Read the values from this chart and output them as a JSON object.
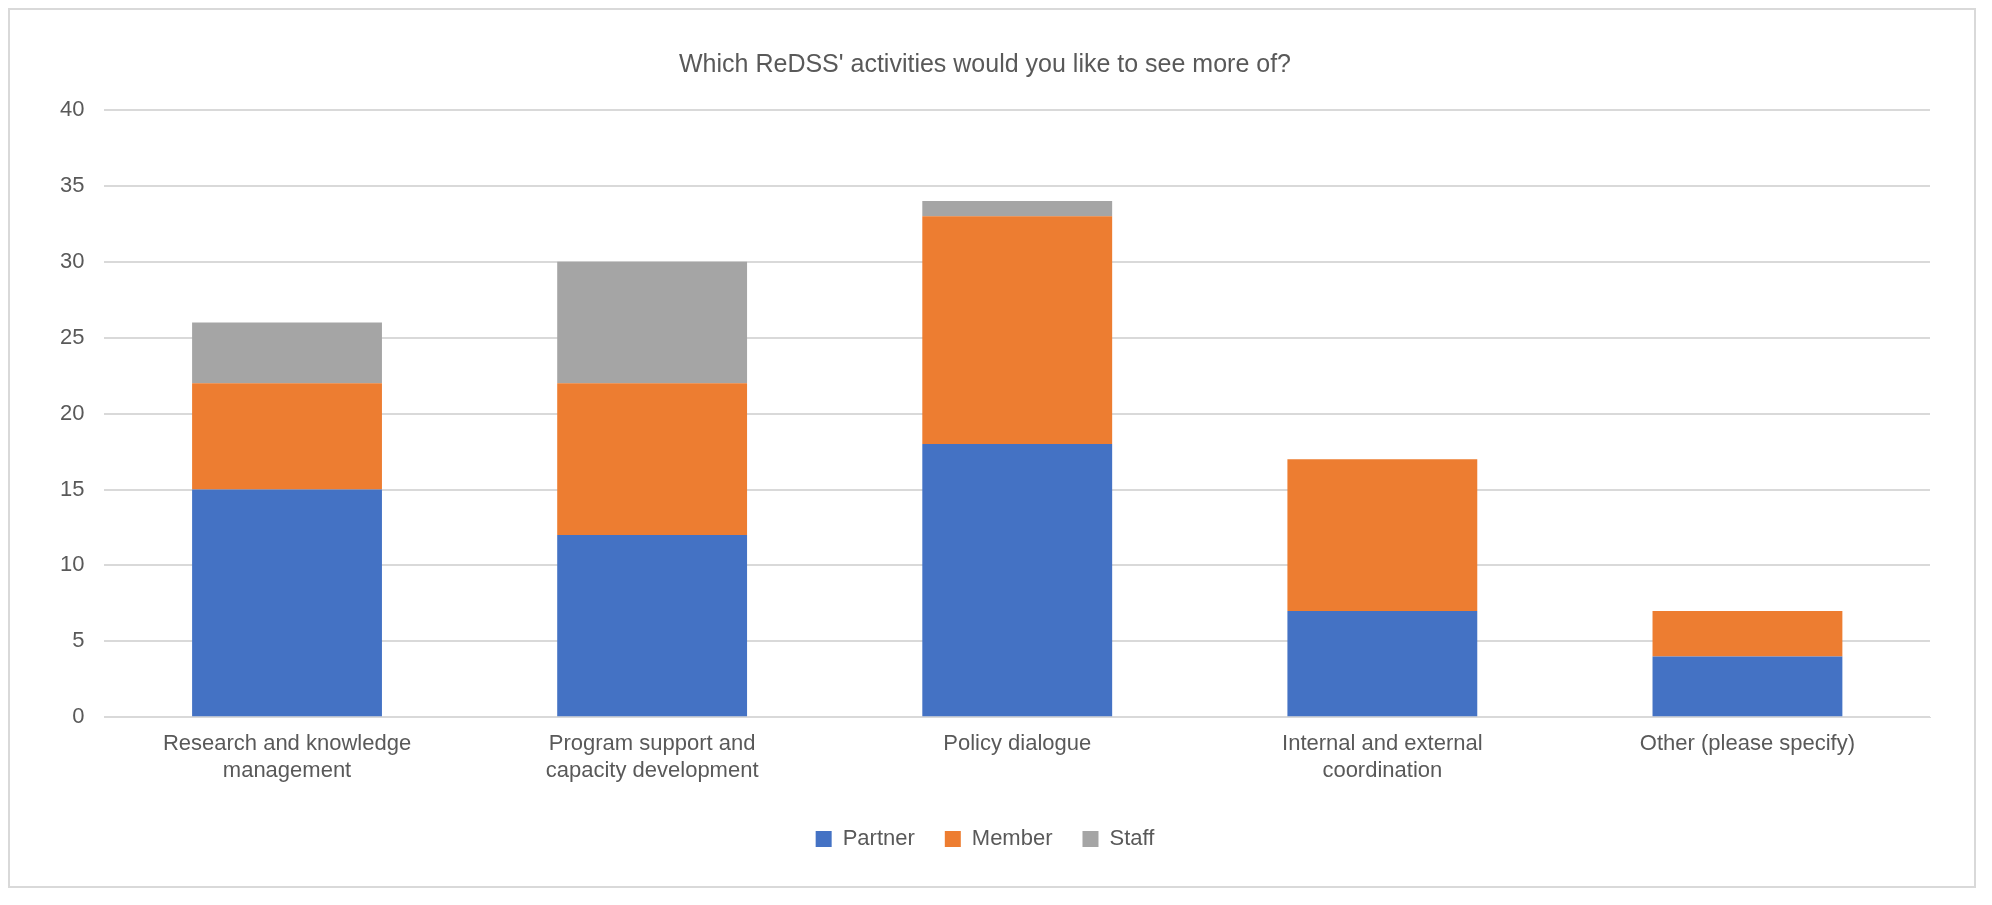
{
  "chart_data": {
    "type": "bar",
    "title": "Which ReDSS' activities would you like to see more of?",
    "categories": [
      "Research and knowledge management",
      "Program support and capacity development",
      "Policy dialogue",
      "Internal and external coordination",
      "Other (please specify)"
    ],
    "series": [
      {
        "name": "Partner",
        "color": "#4472c4",
        "values": [
          15,
          12,
          18,
          7,
          4
        ]
      },
      {
        "name": "Member",
        "color": "#ed7d31",
        "values": [
          7,
          10,
          15,
          10,
          3
        ]
      },
      {
        "name": "Staff",
        "color": "#a5a5a5",
        "values": [
          4,
          8,
          1,
          0,
          0
        ]
      }
    ],
    "stacked": true,
    "ylim": [
      0,
      40
    ],
    "yticks": [
      0,
      5,
      10,
      15,
      20,
      25,
      30,
      35,
      40
    ],
    "grid": "y",
    "legend": "bottom"
  }
}
